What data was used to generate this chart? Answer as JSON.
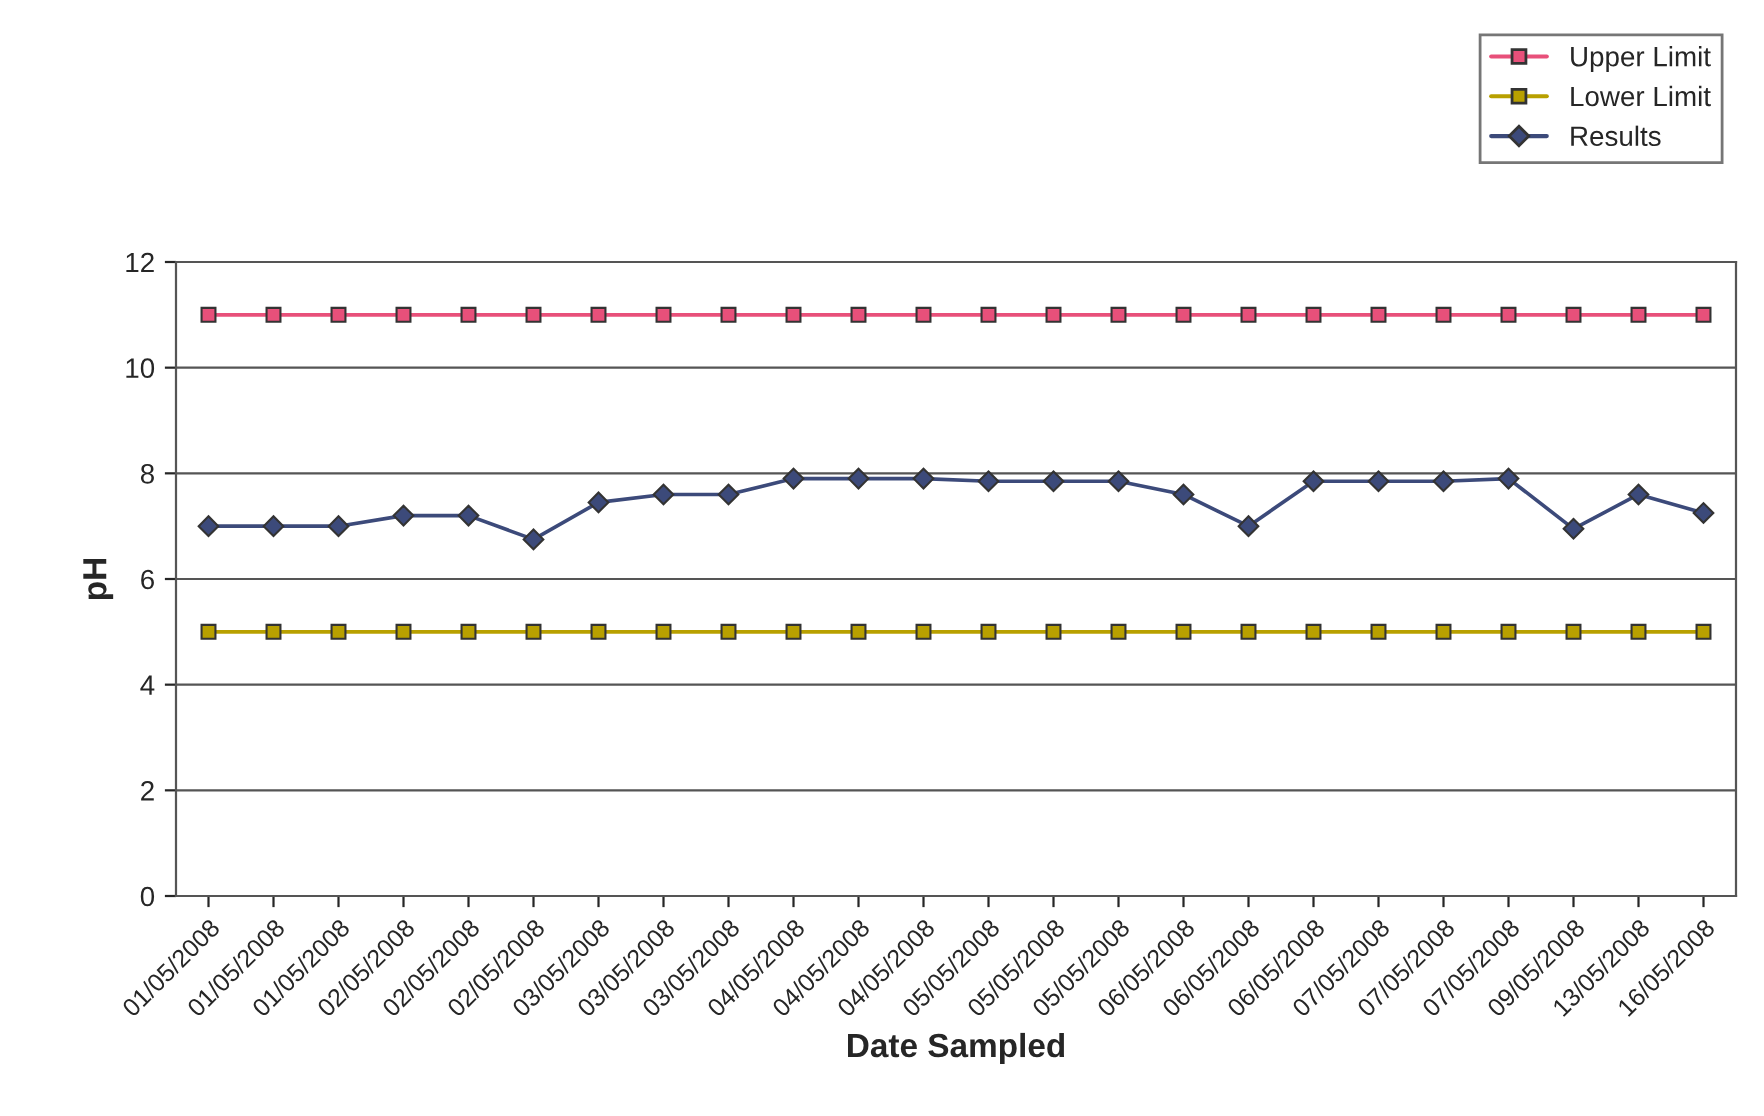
{
  "chart_data": {
    "type": "line",
    "xlabel": "Date Sampled",
    "ylabel": "pH",
    "categories": [
      "01/05/2008",
      "01/05/2008",
      "01/05/2008",
      "02/05/2008",
      "02/05/2008",
      "02/05/2008",
      "03/05/2008",
      "03/05/2008",
      "03/05/2008",
      "04/05/2008",
      "04/05/2008",
      "04/05/2008",
      "05/05/2008",
      "05/05/2008",
      "05/05/2008",
      "06/05/2008",
      "06/05/2008",
      "06/05/2008",
      "07/05/2008",
      "07/05/2008",
      "07/05/2008",
      "09/05/2008",
      "13/05/2008",
      "16/05/2008"
    ],
    "series": [
      {
        "name": "Upper Limit",
        "color": "#e8507a",
        "marker": "square",
        "values": [
          11,
          11,
          11,
          11,
          11,
          11,
          11,
          11,
          11,
          11,
          11,
          11,
          11,
          11,
          11,
          11,
          11,
          11,
          11,
          11,
          11,
          11,
          11,
          11
        ]
      },
      {
        "name": "Lower Limit",
        "color": "#b8a000",
        "marker": "square",
        "values": [
          5,
          5,
          5,
          5,
          5,
          5,
          5,
          5,
          5,
          5,
          5,
          5,
          5,
          5,
          5,
          5,
          5,
          5,
          5,
          5,
          5,
          5,
          5,
          5
        ]
      },
      {
        "name": "Results",
        "color": "#3c4a7a",
        "marker": "diamond",
        "values": [
          7.0,
          7.0,
          7.0,
          7.2,
          7.2,
          6.75,
          7.45,
          7.6,
          7.6,
          7.9,
          7.9,
          7.9,
          7.85,
          7.85,
          7.85,
          7.6,
          7.0,
          7.85,
          7.85,
          7.85,
          7.9,
          6.95,
          7.6,
          7.25
        ]
      }
    ],
    "ylim": [
      0,
      12
    ],
    "yticks": [
      0,
      2,
      4,
      6,
      8,
      10,
      12
    ],
    "grid": "y",
    "legend": "top right",
    "line_style": "solid"
  }
}
